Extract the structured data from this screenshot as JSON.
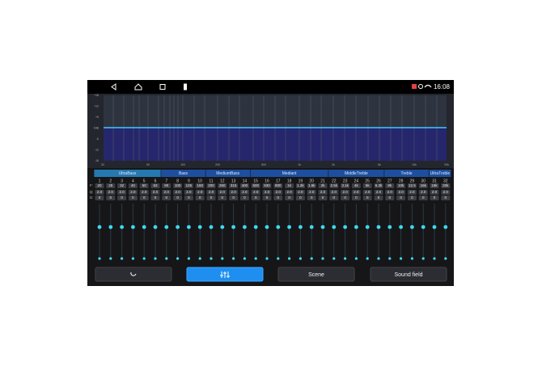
{
  "status_bar": {
    "time": "16:08"
  },
  "graph": {
    "y_labels": [
      "+18",
      "+12",
      "+6",
      "0dB",
      "-6",
      "-12",
      "-18"
    ],
    "x_labels": [
      "20",
      "50",
      "100",
      "200",
      "500",
      "1k",
      "2k",
      "5k",
      "10k",
      "20k"
    ]
  },
  "bands": [
    "UltraBass",
    "Bass",
    "MediumBass",
    "Mediant",
    "MiddleTreble",
    "Treble",
    "UltraTreble"
  ],
  "row_labels": [
    "F:",
    "Q:",
    "G:"
  ],
  "channels": [
    {
      "number": 1,
      "frequency": "20",
      "q": "2.0",
      "gain": 0
    },
    {
      "number": 2,
      "frequency": "25",
      "q": "2.0",
      "gain": 0
    },
    {
      "number": 3,
      "frequency": "32",
      "q": "2.0",
      "gain": 0
    },
    {
      "number": 4,
      "frequency": "40",
      "q": "2.0",
      "gain": 0
    },
    {
      "number": 5,
      "frequency": "50",
      "q": "2.0",
      "gain": 0
    },
    {
      "number": 6,
      "frequency": "63",
      "q": "2.0",
      "gain": 0
    },
    {
      "number": 7,
      "frequency": "80",
      "q": "2.0",
      "gain": 0
    },
    {
      "number": 8,
      "frequency": "100",
      "q": "2.0",
      "gain": 0
    },
    {
      "number": 9,
      "frequency": "125",
      "q": "2.0",
      "gain": 0
    },
    {
      "number": 10,
      "frequency": "160",
      "q": "2.0",
      "gain": 0
    },
    {
      "number": 11,
      "frequency": "200",
      "q": "2.0",
      "gain": 0
    },
    {
      "number": 12,
      "frequency": "250",
      "q": "2.0",
      "gain": 0
    },
    {
      "number": 13,
      "frequency": "315",
      "q": "2.0",
      "gain": 0
    },
    {
      "number": 14,
      "frequency": "400",
      "q": "2.0",
      "gain": 0
    },
    {
      "number": 15,
      "frequency": "500",
      "q": "2.0",
      "gain": 0
    },
    {
      "number": 16,
      "frequency": "630",
      "q": "2.0",
      "gain": 0
    },
    {
      "number": 17,
      "frequency": "800",
      "q": "2.0",
      "gain": 0
    },
    {
      "number": 18,
      "frequency": "1k",
      "q": "2.0",
      "gain": 0
    },
    {
      "number": 19,
      "frequency": "1.2k",
      "q": "2.0",
      "gain": 0
    },
    {
      "number": 20,
      "frequency": "1.6k",
      "q": "2.0",
      "gain": 0
    },
    {
      "number": 21,
      "frequency": "2k",
      "q": "2.0",
      "gain": 0
    },
    {
      "number": 22,
      "frequency": "2.5k",
      "q": "2.0",
      "gain": 0
    },
    {
      "number": 23,
      "frequency": "3.1k",
      "q": "2.0",
      "gain": 0
    },
    {
      "number": 24,
      "frequency": "4k",
      "q": "2.0",
      "gain": 0
    },
    {
      "number": 25,
      "frequency": "5k",
      "q": "2.0",
      "gain": 0
    },
    {
      "number": 26,
      "frequency": "6.3k",
      "q": "2.0",
      "gain": 0
    },
    {
      "number": 27,
      "frequency": "8k",
      "q": "2.0",
      "gain": 0
    },
    {
      "number": 28,
      "frequency": "10k",
      "q": "2.0",
      "gain": 0
    },
    {
      "number": 29,
      "frequency": "12.5",
      "q": "2.0",
      "gain": 0
    },
    {
      "number": 30,
      "frequency": "16k",
      "q": "2.0",
      "gain": 0
    },
    {
      "number": 31,
      "frequency": "18k",
      "q": "2.0",
      "gain": 0
    },
    {
      "number": 32,
      "frequency": "20k",
      "q": "2.0",
      "gain": 0
    }
  ],
  "buttons": [
    "Scene",
    "Sound field"
  ]
}
